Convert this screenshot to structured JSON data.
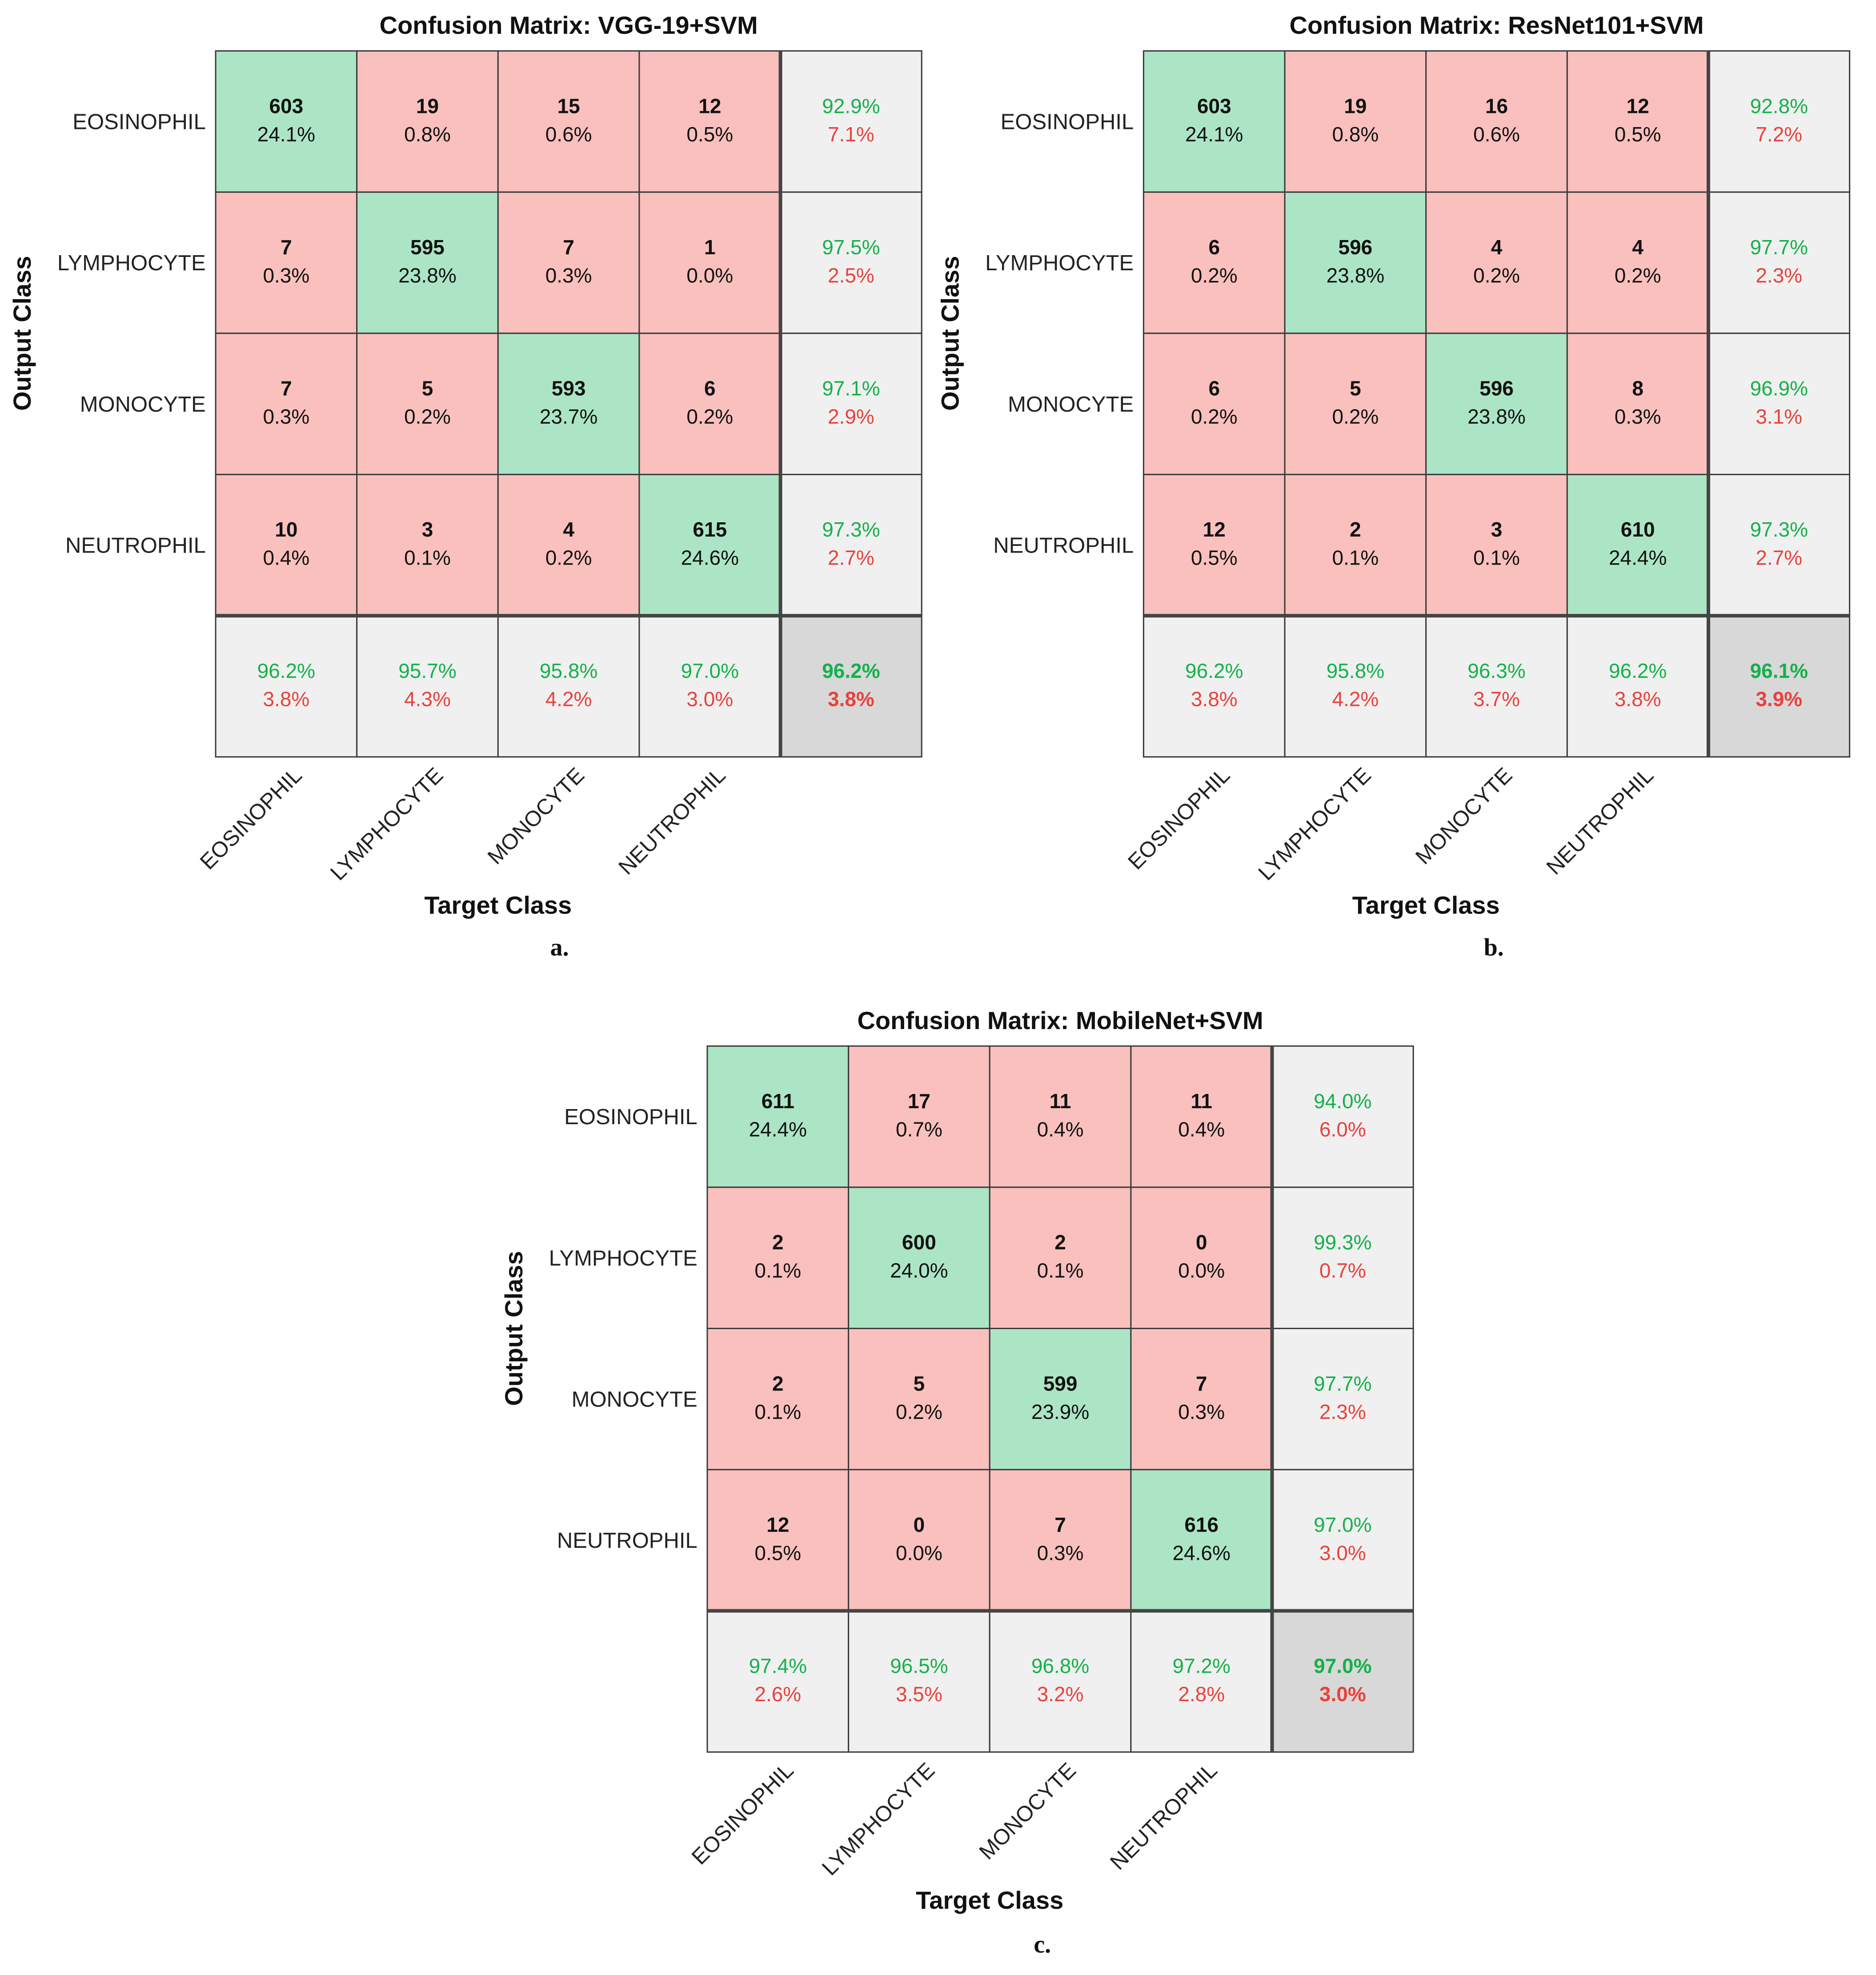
{
  "chart_data": [
    {
      "type": "heatmap",
      "panel_label": "a.",
      "title": "Confusion Matrix: VGG-19+SVM",
      "xlabel": "Target Class",
      "ylabel": "Output Class",
      "classes": [
        "EOSINOPHIL",
        "LYMPHOCYTE",
        "MONOCYTE",
        "NEUTROPHIL"
      ],
      "counts": [
        [
          603,
          19,
          15,
          12
        ],
        [
          7,
          595,
          7,
          1
        ],
        [
          7,
          5,
          593,
          6
        ],
        [
          10,
          3,
          4,
          615
        ]
      ],
      "percents": [
        [
          "24.1%",
          "0.8%",
          "0.6%",
          "0.5%"
        ],
        [
          "0.3%",
          "23.8%",
          "0.3%",
          "0.0%"
        ],
        [
          "0.3%",
          "0.2%",
          "23.7%",
          "0.2%"
        ],
        [
          "0.4%",
          "0.1%",
          "0.2%",
          "24.6%"
        ]
      ],
      "row_summary": [
        [
          "92.9%",
          "7.1%"
        ],
        [
          "97.5%",
          "2.5%"
        ],
        [
          "97.1%",
          "2.9%"
        ],
        [
          "97.3%",
          "2.7%"
        ]
      ],
      "col_summary": [
        [
          "96.2%",
          "3.8%"
        ],
        [
          "95.7%",
          "4.3%"
        ],
        [
          "95.8%",
          "4.2%"
        ],
        [
          "97.0%",
          "3.0%"
        ]
      ],
      "overall": [
        "96.2%",
        "3.8%"
      ]
    },
    {
      "type": "heatmap",
      "panel_label": "b.",
      "title": "Confusion Matrix: ResNet101+SVM",
      "xlabel": "Target Class",
      "ylabel": "Output Class",
      "classes": [
        "EOSINOPHIL",
        "LYMPHOCYTE",
        "MONOCYTE",
        "NEUTROPHIL"
      ],
      "counts": [
        [
          603,
          19,
          16,
          12
        ],
        [
          6,
          596,
          4,
          4
        ],
        [
          6,
          5,
          596,
          8
        ],
        [
          12,
          2,
          3,
          610
        ]
      ],
      "percents": [
        [
          "24.1%",
          "0.8%",
          "0.6%",
          "0.5%"
        ],
        [
          "0.2%",
          "23.8%",
          "0.2%",
          "0.2%"
        ],
        [
          "0.2%",
          "0.2%",
          "23.8%",
          "0.3%"
        ],
        [
          "0.5%",
          "0.1%",
          "0.1%",
          "24.4%"
        ]
      ],
      "row_summary": [
        [
          "92.8%",
          "7.2%"
        ],
        [
          "97.7%",
          "2.3%"
        ],
        [
          "96.9%",
          "3.1%"
        ],
        [
          "97.3%",
          "2.7%"
        ]
      ],
      "col_summary": [
        [
          "96.2%",
          "3.8%"
        ],
        [
          "95.8%",
          "4.2%"
        ],
        [
          "96.3%",
          "3.7%"
        ],
        [
          "96.2%",
          "3.8%"
        ]
      ],
      "overall": [
        "96.1%",
        "3.9%"
      ]
    },
    {
      "type": "heatmap",
      "panel_label": "c.",
      "title": "Confusion Matrix: MobileNet+SVM",
      "xlabel": "Target Class",
      "ylabel": "Output Class",
      "classes": [
        "EOSINOPHIL",
        "LYMPHOCYTE",
        "MONOCYTE",
        "NEUTROPHIL"
      ],
      "counts": [
        [
          611,
          17,
          11,
          11
        ],
        [
          2,
          600,
          2,
          0
        ],
        [
          2,
          5,
          599,
          7
        ],
        [
          12,
          0,
          7,
          616
        ]
      ],
      "percents": [
        [
          "24.4%",
          "0.7%",
          "0.4%",
          "0.4%"
        ],
        [
          "0.1%",
          "24.0%",
          "0.1%",
          "0.0%"
        ],
        [
          "0.1%",
          "0.2%",
          "23.9%",
          "0.3%"
        ],
        [
          "0.5%",
          "0.0%",
          "0.3%",
          "24.6%"
        ]
      ],
      "row_summary": [
        [
          "94.0%",
          "6.0%"
        ],
        [
          "99.3%",
          "0.7%"
        ],
        [
          "97.7%",
          "2.3%"
        ],
        [
          "97.0%",
          "3.0%"
        ]
      ],
      "col_summary": [
        [
          "97.4%",
          "2.6%"
        ],
        [
          "96.5%",
          "3.5%"
        ],
        [
          "96.8%",
          "3.2%"
        ],
        [
          "97.2%",
          "2.8%"
        ]
      ],
      "overall": [
        "97.0%",
        "3.0%"
      ]
    }
  ],
  "colors": {
    "correct": "#abe5c5",
    "incorrect": "#f9c0bd",
    "summary": "#f0f0f0",
    "overall": "#d8d8d8",
    "green_text": "#14b14b",
    "red_text": "#e8413c",
    "grid": "#3a3a3a",
    "text": "#222222"
  }
}
